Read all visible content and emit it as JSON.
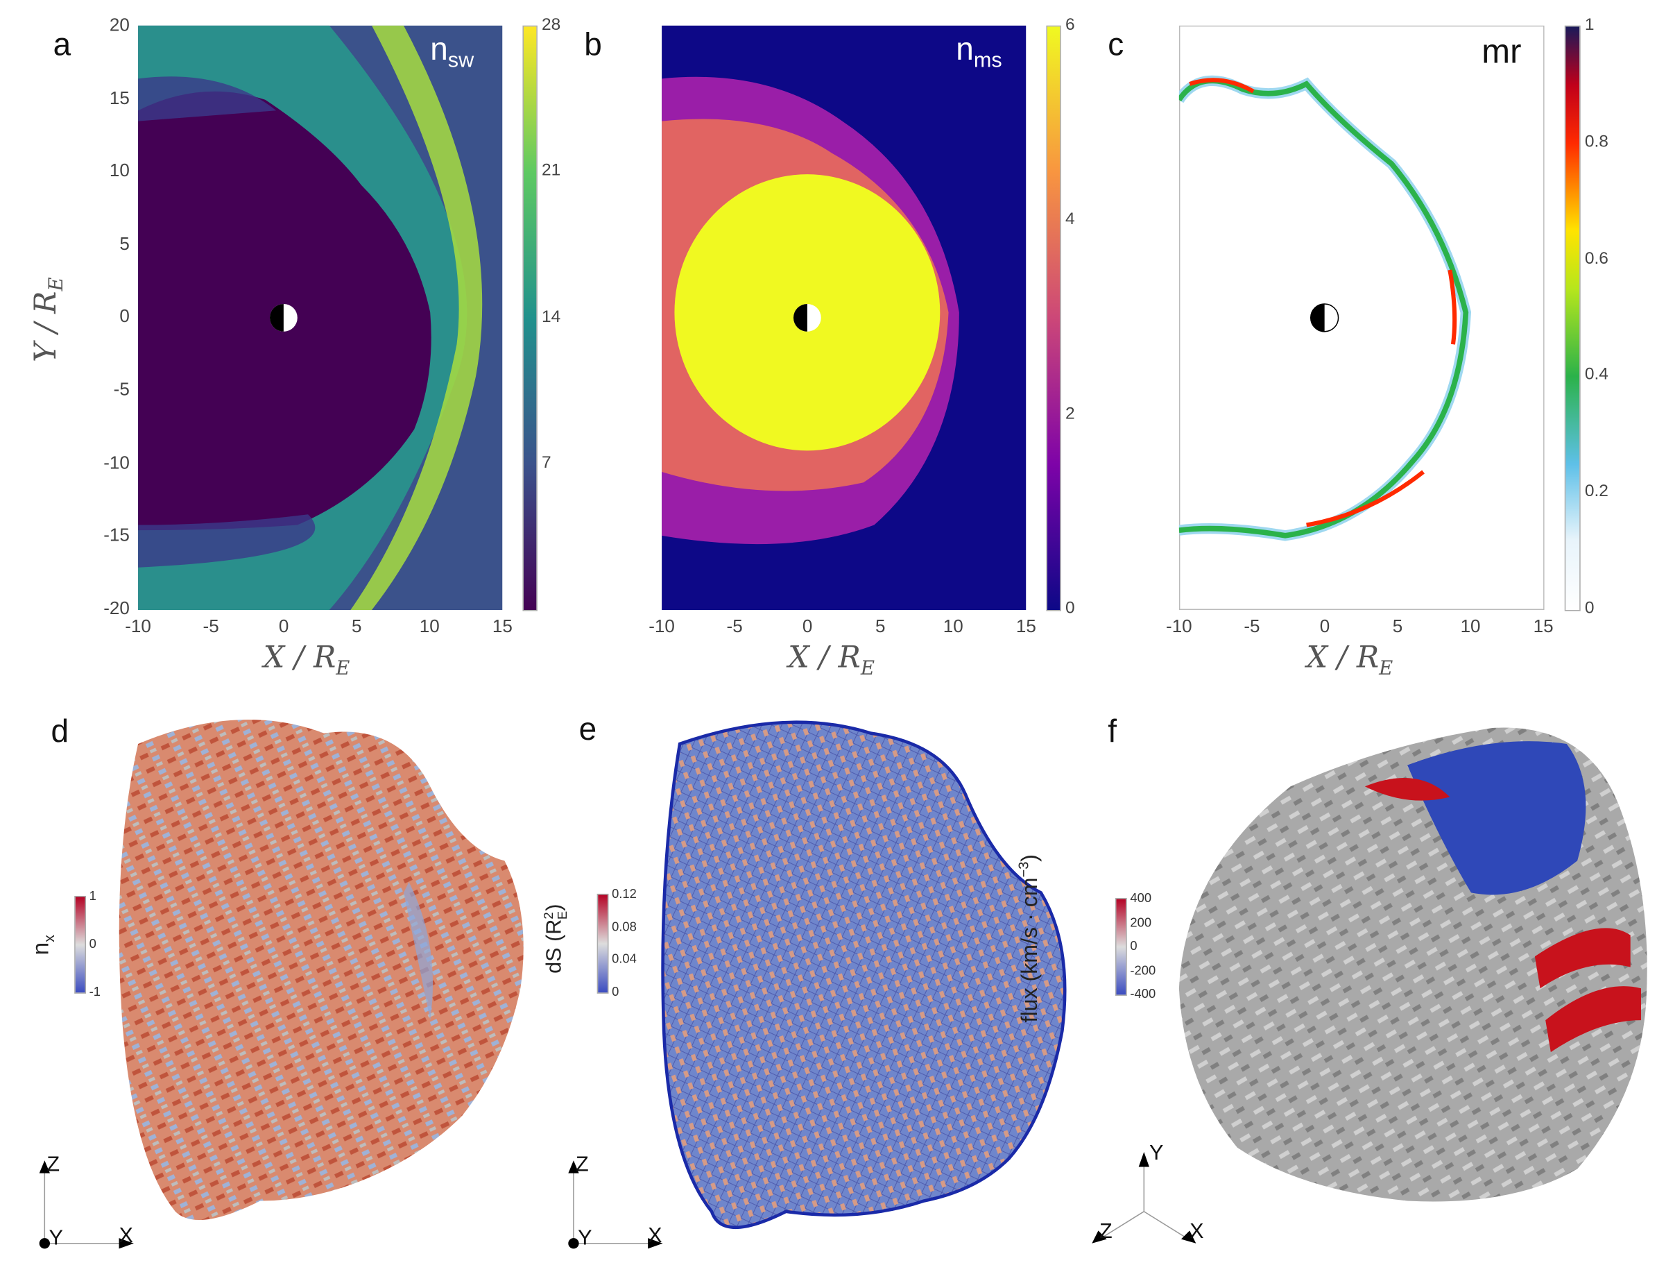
{
  "panels": {
    "a": {
      "label": "a",
      "quantity": "n",
      "quantity_sub": "sw",
      "xlabel": "X / R",
      "xlabel_sub": "E",
      "ylabel": "Y / R",
      "ylabel_sub": "E",
      "xticks": [
        "-10",
        "-5",
        "0",
        "5",
        "10",
        "15"
      ],
      "yticks": [
        "20",
        "15",
        "10",
        "5",
        "0",
        "-5",
        "-10",
        "-15",
        "-20"
      ],
      "colorbar": {
        "ticks": [
          "28",
          "21",
          "14",
          "7"
        ],
        "colormap": "viridis"
      }
    },
    "b": {
      "label": "b",
      "quantity": "n",
      "quantity_sub": "ms",
      "xlabel": "X / R",
      "xlabel_sub": "E",
      "xticks": [
        "-10",
        "-5",
        "0",
        "5",
        "10",
        "15"
      ],
      "colorbar": {
        "ticks": [
          "6",
          "4",
          "2",
          "0"
        ],
        "colormap": "plasma"
      }
    },
    "c": {
      "label": "c",
      "quantity": "mr",
      "xlabel": "X / R",
      "xlabel_sub": "E",
      "xticks": [
        "-10",
        "-5",
        "0",
        "5",
        "10",
        "15"
      ],
      "colorbar": {
        "ticks": [
          "1",
          "0.8",
          "0.6",
          "0.4",
          "0.2",
          "0"
        ],
        "colormap": "jet-white"
      }
    },
    "d": {
      "label": "d",
      "cb_label": "n",
      "cb_label_sub": "x",
      "colorbar": {
        "ticks": [
          "1",
          "0",
          "-1"
        ],
        "colormap": "coolwarm"
      },
      "triad": {
        "up": "Z",
        "right": "X",
        "out": "Y"
      }
    },
    "e": {
      "label": "e",
      "cb_label": "dS (R",
      "cb_label_sup": "2",
      "cb_label_sub": "E",
      "cb_label_end": ")",
      "colorbar": {
        "ticks": [
          "0.12",
          "0.08",
          "0.04",
          "0"
        ],
        "colormap": "coolwarm"
      },
      "triad": {
        "up": "Z",
        "right": "X",
        "out": "Y"
      }
    },
    "f": {
      "label": "f",
      "cb_label": "flux (km/s · cm",
      "cb_label_sup": "−3",
      "cb_label_end": ")",
      "colorbar": {
        "ticks": [
          "400",
          "200",
          "0",
          "-200",
          "-400"
        ],
        "colormap": "coolwarm"
      },
      "triad": {
        "up": "Y",
        "left": "Z",
        "right": "X"
      }
    }
  },
  "colors": {
    "viridis_low": "#440154",
    "viridis_high": "#fde725",
    "plasma_low": "#0d0887",
    "plasma_high": "#f0f921",
    "cool": "#3b4cc0",
    "warm": "#b40426"
  }
}
